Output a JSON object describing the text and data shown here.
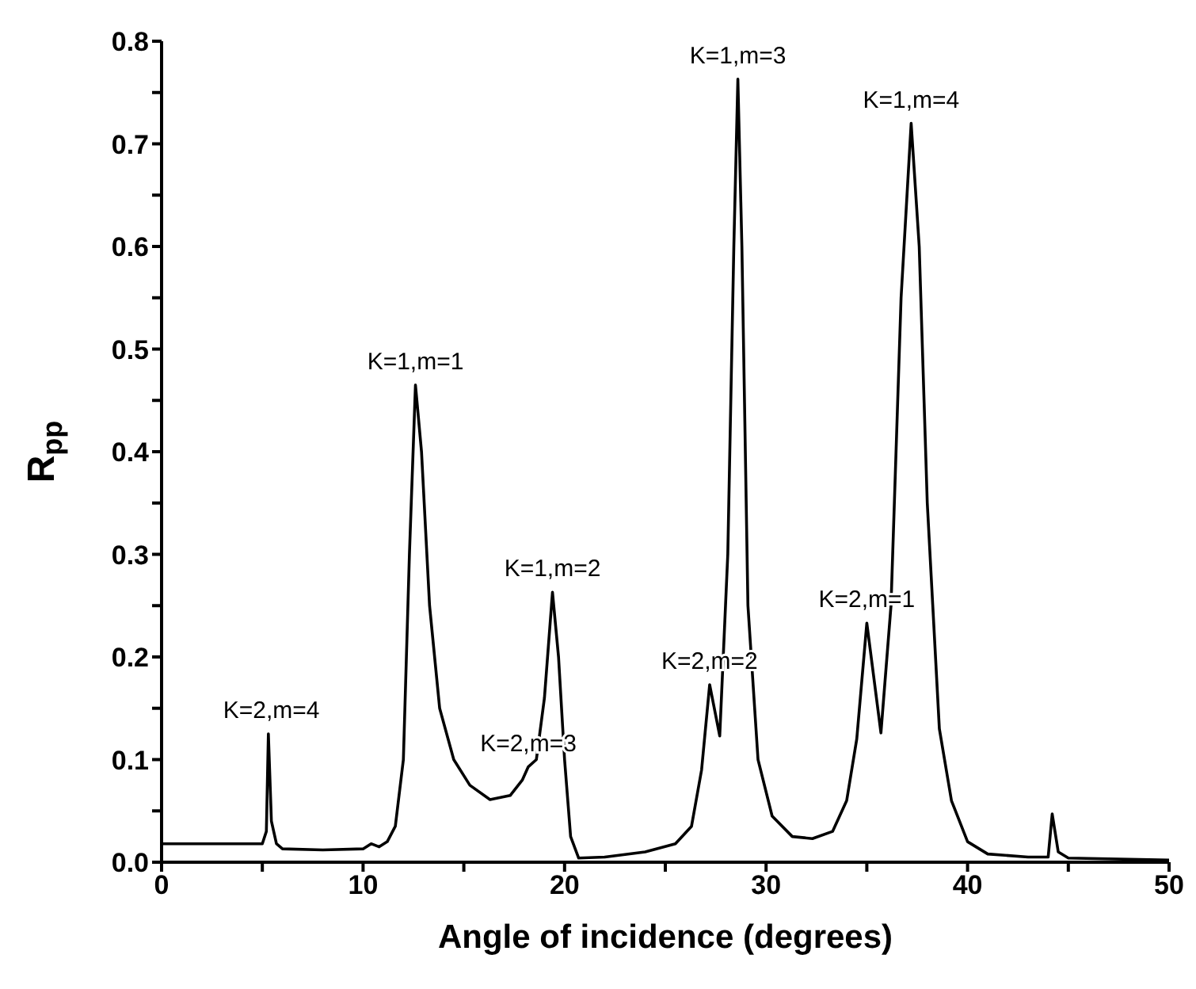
{
  "chart_data": {
    "type": "line",
    "xlabel": "Angle of incidence  (degrees)",
    "ylabel": "R$_{pp}$",
    "x": [
      0,
      3,
      5,
      5.2,
      5.3,
      5.45,
      5.7,
      6,
      8,
      10,
      10.4,
      10.8,
      11.2,
      11.6,
      12,
      12.3,
      12.6,
      12.9,
      13.3,
      13.8,
      14.5,
      15.3,
      16.3,
      17.3,
      17.9,
      18.2,
      18.6,
      19,
      19.4,
      19.7,
      20,
      20.3,
      20.7,
      22,
      24,
      25.5,
      26.3,
      26.8,
      27.2,
      27.7,
      28.1,
      28.4,
      28.6,
      28.8,
      29.1,
      29.6,
      30.3,
      31.3,
      32.3,
      33.3,
      34,
      34.5,
      35,
      35.7,
      36.2,
      36.7,
      37.2,
      37.6,
      38,
      38.6,
      39.2,
      40,
      41,
      43,
      44,
      44.2,
      44.5,
      45,
      50
    ],
    "series": [
      {
        "color": "#000000",
        "values": [
          0.018,
          0.018,
          0.018,
          0.03,
          0.125,
          0.04,
          0.018,
          0.013,
          0.012,
          0.013,
          0.018,
          0.015,
          0.02,
          0.035,
          0.1,
          0.3,
          0.465,
          0.4,
          0.25,
          0.15,
          0.1,
          0.075,
          0.061,
          0.065,
          0.08,
          0.093,
          0.1,
          0.16,
          0.263,
          0.2,
          0.1,
          0.025,
          0.004,
          0.005,
          0.01,
          0.018,
          0.035,
          0.09,
          0.173,
          0.123,
          0.3,
          0.6,
          0.763,
          0.6,
          0.25,
          0.1,
          0.045,
          0.025,
          0.023,
          0.03,
          0.06,
          0.12,
          0.233,
          0.126,
          0.25,
          0.55,
          0.72,
          0.6,
          0.35,
          0.13,
          0.06,
          0.02,
          0.008,
          0.005,
          0.005,
          0.047,
          0.01,
          0.004,
          0.002
        ]
      }
    ],
    "xlim": [
      0,
      50
    ],
    "ylim": [
      0,
      0.8
    ],
    "xticks": [
      0,
      {
        "value": 5,
        "label": null
      },
      10,
      {
        "value": 15,
        "label": null
      },
      20,
      {
        "value": 25,
        "label": null
      },
      30,
      {
        "value": 35,
        "label": null
      },
      40,
      {
        "value": 45,
        "label": null
      },
      50
    ],
    "yticks": [
      {
        "value": 0,
        "label": "0.0"
      },
      {
        "value": 0.05,
        "label": null
      },
      0.1,
      {
        "value": 0.15,
        "label": null
      },
      0.2,
      {
        "value": 0.25,
        "label": null
      },
      0.3,
      {
        "value": 0.35,
        "label": null
      },
      0.4,
      {
        "value": 0.45,
        "label": null
      },
      0.5,
      {
        "value": 0.55,
        "label": null
      },
      0.6,
      {
        "value": 0.65,
        "label": null
      },
      0.7,
      {
        "value": 0.75,
        "label": null
      },
      0.8
    ],
    "annotations": [
      {
        "text": "K=2,m=4",
        "x": 5.45,
        "y": 0.125
      },
      {
        "text": "K=1,m=1",
        "x": 12.6,
        "y": 0.465
      },
      {
        "text": "K=2,m=3",
        "x": 18.2,
        "y": 0.093
      },
      {
        "text": "K=1,m=2",
        "x": 19.4,
        "y": 0.263
      },
      {
        "text": "K=2,m=2",
        "x": 27.2,
        "y": 0.173
      },
      {
        "text": "K=1,m=3",
        "x": 28.6,
        "y": 0.763
      },
      {
        "text": "K=2,m=1",
        "x": 35,
        "y": 0.233
      },
      {
        "text": "K=1,m=4",
        "x": 37.2,
        "y": 0.72
      }
    ],
    "grid": false,
    "legend": false,
    "marker": "none",
    "line_style": "solid"
  }
}
